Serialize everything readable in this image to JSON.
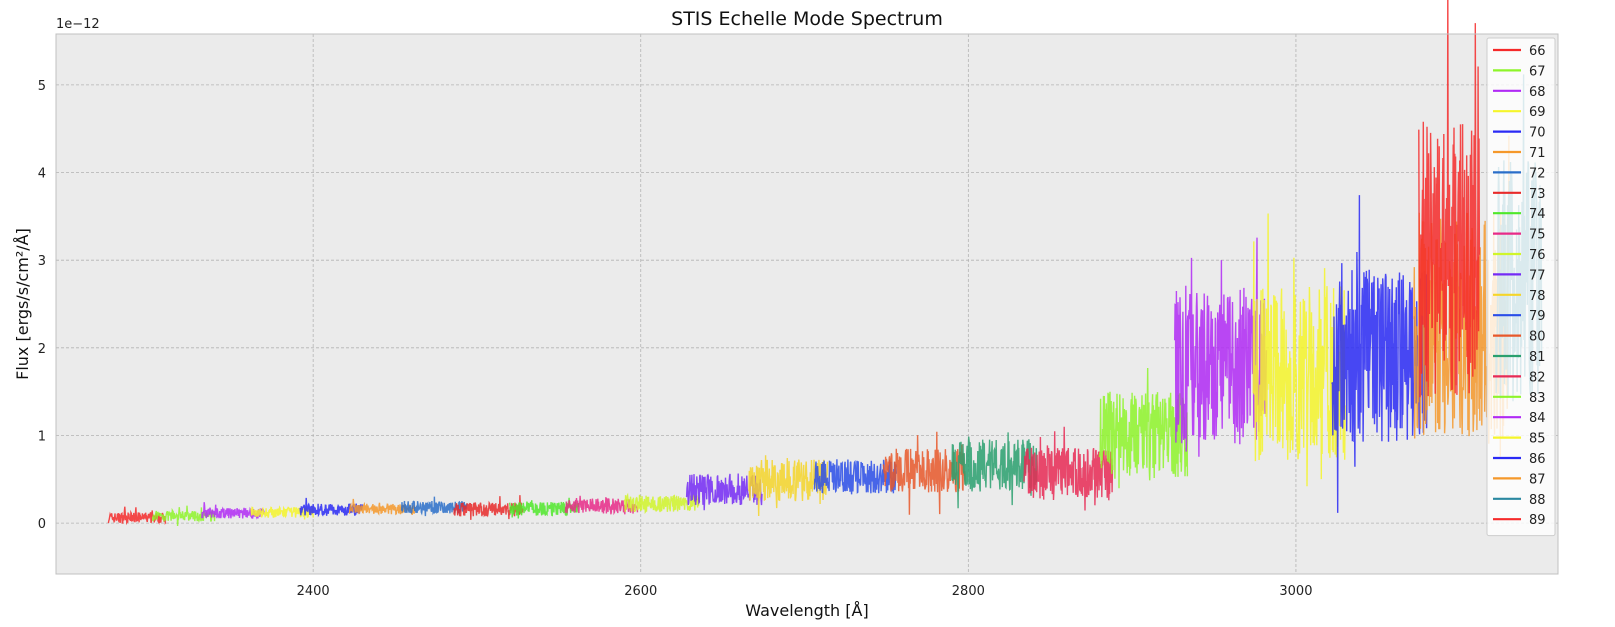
{
  "chart_data": {
    "type": "line",
    "title": "STIS Echelle Mode Spectrum",
    "xlabel": "Wavelength [Å]",
    "ylabel": "Flux [ergs/s/cm²/Å]",
    "y_offset_label": "1e−12",
    "xlim": [
      2243,
      3160
    ],
    "ylim": [
      -0.58,
      5.58
    ],
    "x_ticks": [
      "2400",
      "2600",
      "2800",
      "3000"
    ],
    "y_ticks": [
      "0",
      "1",
      "2",
      "3",
      "4",
      "5"
    ],
    "grid": true,
    "legend_position": "right",
    "series": [
      {
        "name": "66",
        "color": "#f52a2a",
        "x_range": [
          2275,
          2310
        ],
        "base": 0.05,
        "amp": 0.06
      },
      {
        "name": "67",
        "color": "#8ef52a",
        "x_range": [
          2302,
          2340
        ],
        "base": 0.07,
        "amp": 0.06
      },
      {
        "name": "68",
        "color": "#b02af5",
        "x_range": [
          2332,
          2370
        ],
        "base": 0.1,
        "amp": 0.06
      },
      {
        "name": "69",
        "color": "#f5f52a",
        "x_range": [
          2362,
          2400
        ],
        "base": 0.11,
        "amp": 0.06
      },
      {
        "name": "70",
        "color": "#2a2af5",
        "x_range": [
          2392,
          2430
        ],
        "base": 0.14,
        "amp": 0.07
      },
      {
        "name": "71",
        "color": "#f5982a",
        "x_range": [
          2422,
          2462
        ],
        "base": 0.15,
        "amp": 0.06
      },
      {
        "name": "72",
        "color": "#2a6ec9",
        "x_range": [
          2454,
          2494
        ],
        "base": 0.17,
        "amp": 0.07
      },
      {
        "name": "73",
        "color": "#e82a2a",
        "x_range": [
          2486,
          2528
        ],
        "base": 0.14,
        "amp": 0.08
      },
      {
        "name": "74",
        "color": "#4fe82a",
        "x_range": [
          2520,
          2562
        ],
        "base": 0.15,
        "amp": 0.08
      },
      {
        "name": "75",
        "color": "#e82a88",
        "x_range": [
          2554,
          2598
        ],
        "base": 0.18,
        "amp": 0.09
      },
      {
        "name": "76",
        "color": "#d0f52a",
        "x_range": [
          2590,
          2636
        ],
        "base": 0.2,
        "amp": 0.1
      },
      {
        "name": "77",
        "color": "#742af5",
        "x_range": [
          2628,
          2674
        ],
        "base": 0.35,
        "amp": 0.18
      },
      {
        "name": "78",
        "color": "#f5d52a",
        "x_range": [
          2666,
          2714
        ],
        "base": 0.45,
        "amp": 0.25
      },
      {
        "name": "79",
        "color": "#2a4ee8",
        "x_range": [
          2706,
          2756
        ],
        "base": 0.5,
        "amp": 0.2
      },
      {
        "name": "80",
        "color": "#e8582a",
        "x_range": [
          2748,
          2798
        ],
        "base": 0.55,
        "amp": 0.25
      },
      {
        "name": "81",
        "color": "#2aa06e",
        "x_range": [
          2790,
          2842
        ],
        "base": 0.6,
        "amp": 0.3
      },
      {
        "name": "82",
        "color": "#e82a55",
        "x_range": [
          2834,
          2888
        ],
        "base": 0.5,
        "amp": 0.3
      },
      {
        "name": "83",
        "color": "#8ef52a",
        "x_range": [
          2880,
          2934
        ],
        "base": 0.9,
        "amp": 0.5
      },
      {
        "name": "84",
        "color": "#b02af5",
        "x_range": [
          2926,
          2982
        ],
        "base": 1.6,
        "amp": 0.9
      },
      {
        "name": "85",
        "color": "#f5f52a",
        "x_range": [
          2974,
          3030
        ],
        "base": 1.5,
        "amp": 1.0
      },
      {
        "name": "86",
        "color": "#2a2af5",
        "x_range": [
          3022,
          3080
        ],
        "base": 1.7,
        "amp": 1.0
      },
      {
        "name": "87",
        "color": "#f5982a",
        "x_range": [
          3072,
          3130
        ],
        "base": 2.0,
        "amp": 1.3
      },
      {
        "name": "88",
        "color": "#2a88a0",
        "x_range": [
          3122,
          3150
        ],
        "base": 2.5,
        "amp": 1.4
      },
      {
        "name": "89",
        "color": "#f52a2a",
        "x_range": [
          3075,
          3112
        ],
        "base": 2.7,
        "amp": 1.6
      }
    ]
  }
}
